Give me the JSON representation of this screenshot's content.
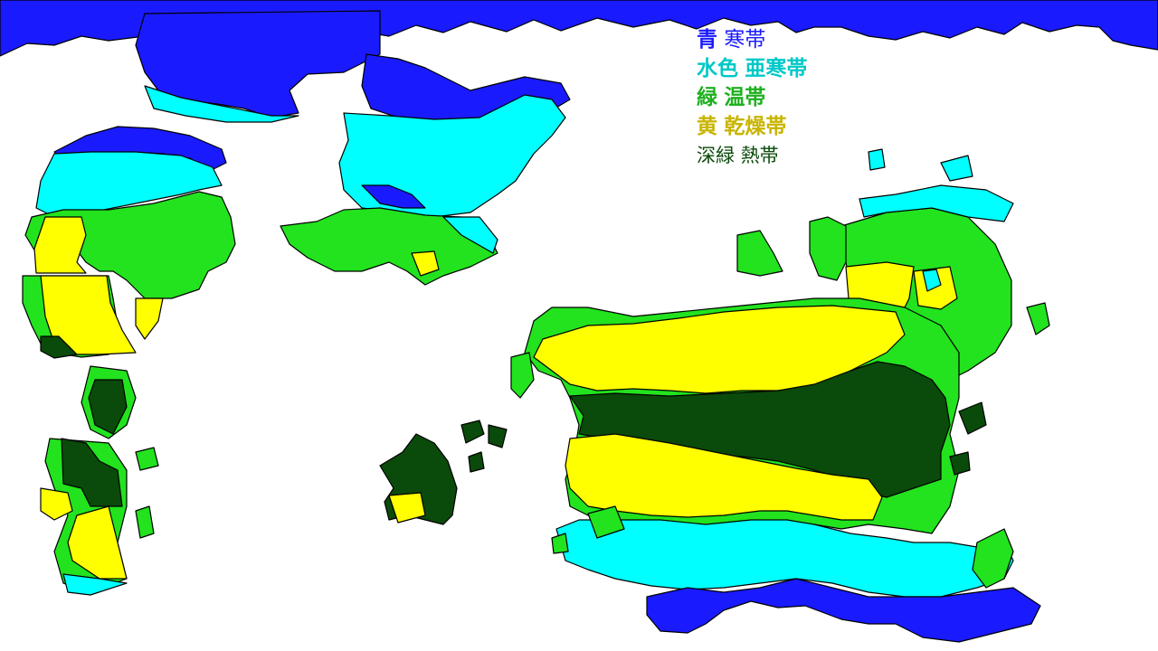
{
  "legend": {
    "items": [
      {
        "color_name": "青",
        "zone": "寒帯",
        "hex": "#1a1aff"
      },
      {
        "color_name": "水色",
        "zone": "亜寒帯",
        "hex": "#00ffff"
      },
      {
        "color_name": "緑",
        "zone": "温帯",
        "hex": "#22e31e"
      },
      {
        "color_name": "黄",
        "zone": "乾燥帯",
        "hex": "#ffff00"
      },
      {
        "color_name": "深緑",
        "zone": "熱帯",
        "hex": "#0a4a0a"
      }
    ]
  },
  "legend_text_colors": [
    "#1a1aff",
    "#00c8c8",
    "#1fb01f",
    "#c8b400",
    "#0a4a0a"
  ],
  "ocean_color": "#ffffff",
  "border_color": "#000000"
}
